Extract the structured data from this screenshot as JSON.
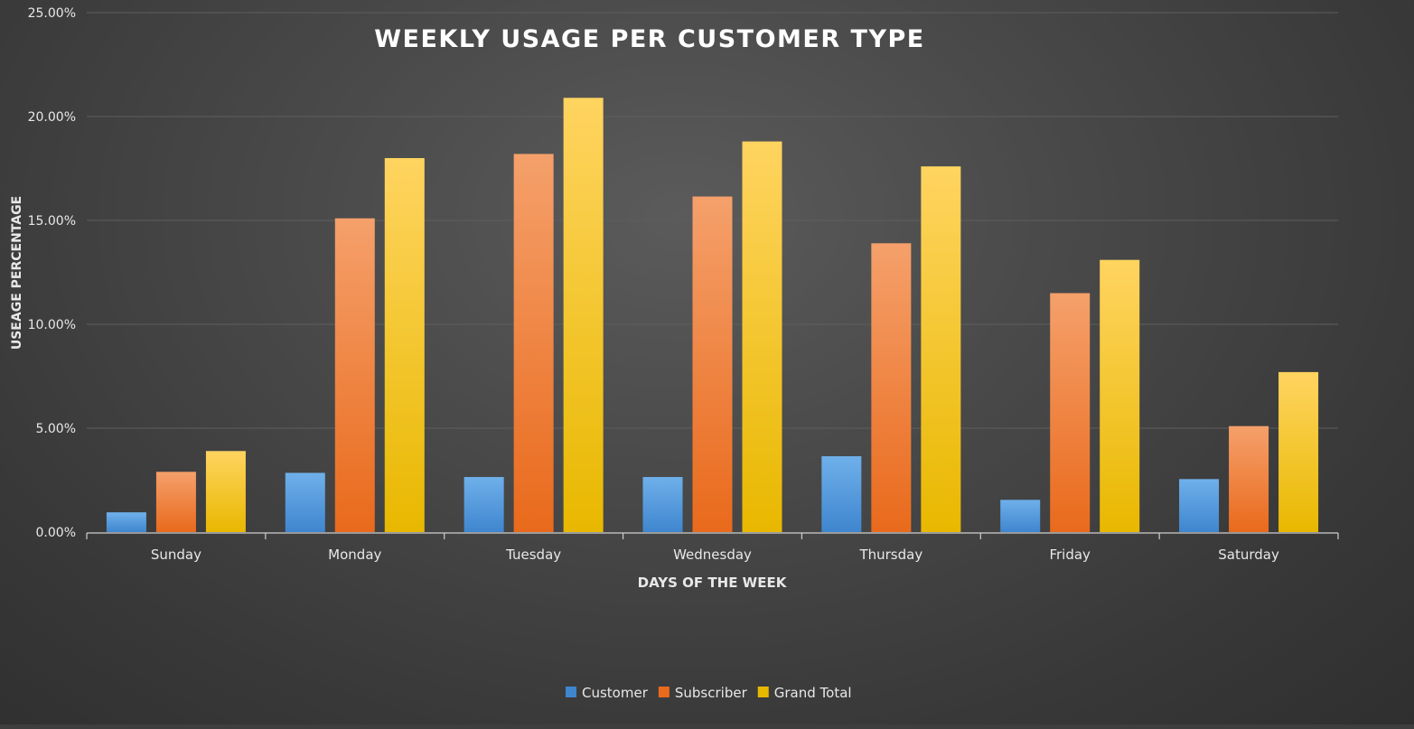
{
  "chart_data": {
    "type": "bar",
    "title": "WEEKLY USAGE PER CUSTOMER TYPE",
    "xlabel": "DAYS OF THE WEEK",
    "ylabel": "USEAGE PERCENTAGE",
    "categories": [
      "Sunday",
      "Monday",
      "Tuesday",
      "Wednesday",
      "Thursday",
      "Friday",
      "Saturday"
    ],
    "series": [
      {
        "name": "Customer",
        "values": [
          0.95,
          2.85,
          2.65,
          2.65,
          3.65,
          1.55,
          2.55
        ]
      },
      {
        "name": "Subscriber",
        "values": [
          2.9,
          15.1,
          18.2,
          16.15,
          13.9,
          11.5,
          5.1
        ]
      },
      {
        "name": "Grand Total",
        "values": [
          3.9,
          18.0,
          20.9,
          18.8,
          17.6,
          13.1,
          7.7
        ]
      }
    ],
    "ylim": [
      0,
      25
    ],
    "yticks": [
      "0.00%",
      "5.00%",
      "10.00%",
      "15.00%",
      "20.00%",
      "25.00%"
    ],
    "grid": true,
    "legend_position": "bottom",
    "colors": {
      "Customer": [
        "#6fb0ea",
        "#3f86cf"
      ],
      "Subscriber": [
        "#f5a06b",
        "#e96a1c"
      ],
      "Grand Total": [
        "#ffd460",
        "#e8b800"
      ],
      "background": "#3e3e3e",
      "text": "#e8e8e8",
      "grid": "#5e5e5e"
    }
  }
}
